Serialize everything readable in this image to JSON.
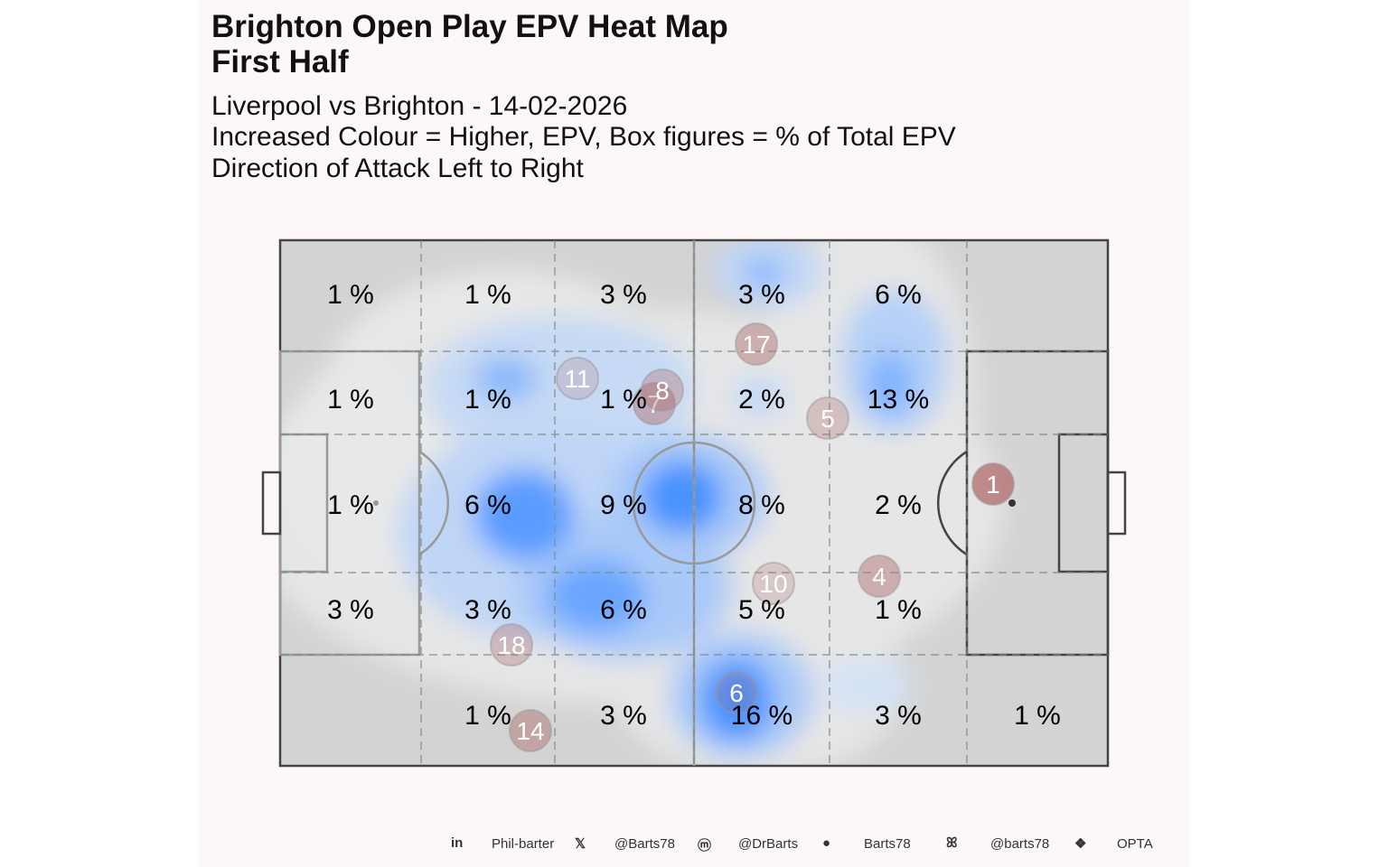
{
  "title_line1": "Brighton  Open Play EPV Heat Map",
  "title_line2": "First Half",
  "subtitle_lines": [
    "Liverpool vs Brighton - 14-02-2026",
    "Increased Colour = Higher, EPV, Box figures = % of Total EPV",
    "Direction of Attack Left to Right"
  ],
  "chart_data": {
    "type": "heatmap",
    "title": "Brighton  Open Play EPV Heat Map - First Half",
    "attack_direction": "left-to-right",
    "zone_unit": "% of Total EPV",
    "zones": [
      [
        "1 %",
        "1 %",
        "3 %",
        "3 %",
        "6 %",
        ""
      ],
      [
        "1 %",
        "1 %",
        "1 %",
        "2 %",
        "13 %",
        ""
      ],
      [
        "1 %",
        "6 %",
        "9 %",
        "8 %",
        "2 %",
        ""
      ],
      [
        "3 %",
        "3 %",
        "6 %",
        "5 %",
        "1 %",
        ""
      ],
      [
        "",
        "1 %",
        "3 %",
        "16 %",
        "3 %",
        "1 %"
      ]
    ],
    "player_numbers": [
      "1",
      "4",
      "5",
      "6",
      "7",
      "8",
      "10",
      "11",
      "14",
      "17",
      "18"
    ],
    "colors": {
      "pitch": "#d3d3d3",
      "heat_high": "#3d8bff",
      "player": "#b06b6b",
      "background": "#fdf7f7"
    }
  },
  "footer": {
    "linkedin": "Phil-barter",
    "x": "@Barts78",
    "mastodon": "@DrBarts",
    "github": "Barts78",
    "bluesky": "@barts78",
    "source": "OPTA"
  }
}
